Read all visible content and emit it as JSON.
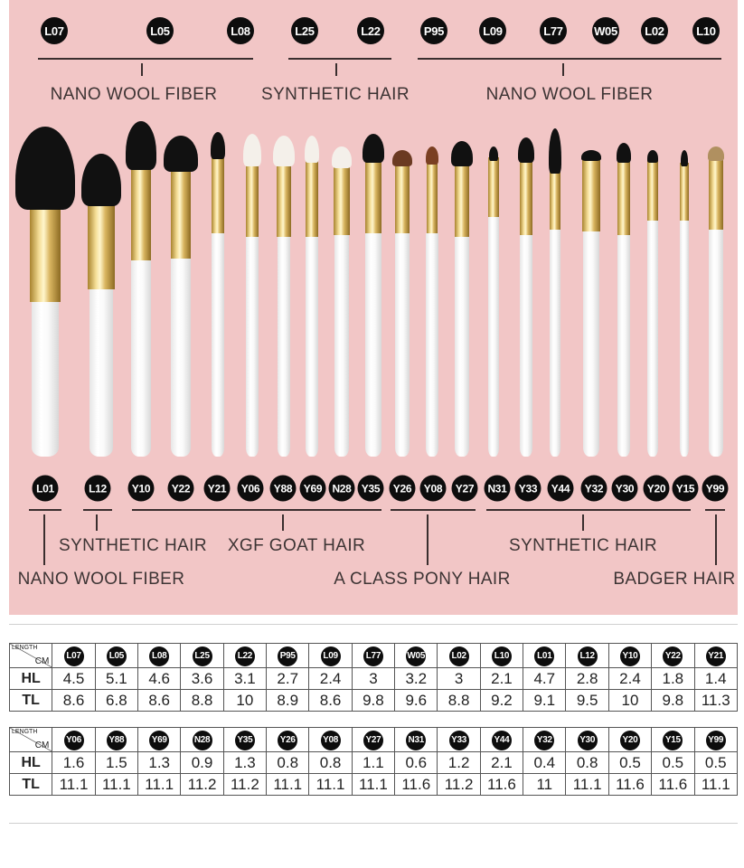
{
  "top_codes": [
    "L07",
    "L05",
    "L08",
    "L25",
    "L22",
    "P95",
    "L09",
    "L77",
    "W05",
    "L02",
    "L10"
  ],
  "top_groups": [
    "NANO WOOL  FIBER",
    "SYNTHETIC HAIR",
    "NANO WOOL  FIBER"
  ],
  "bottom_codes": [
    "L01",
    "L12",
    "Y10",
    "Y22",
    "Y21",
    "Y06",
    "Y88",
    "Y69",
    "N28",
    "Y35",
    "Y26",
    "Y08",
    "Y27",
    "N31",
    "Y33",
    "Y44",
    "Y32",
    "Y30",
    "Y20",
    "Y15",
    "Y99"
  ],
  "bottom_groups": [
    "SYNTHETIC HAIR",
    "XGF GOAT HAIR",
    "SYNTHETIC HAIR",
    "NANO WOOL  FIBER",
    "A CLASS PONY HAIR",
    "BADGER HAIR"
  ],
  "colors": {
    "background": "#f2c6c6",
    "badge": "#0d0d0d",
    "bristle_dark": "#111111",
    "ferrule": "#d9b560",
    "handle": "#ffffff"
  },
  "table": {
    "corner_top": "LENGTH",
    "corner_unit": "CM",
    "row_labels": [
      "HL",
      "TL"
    ],
    "row1": {
      "codes": [
        "L07",
        "L05",
        "L08",
        "L25",
        "L22",
        "P95",
        "L09",
        "L77",
        "W05",
        "L02",
        "L10",
        "L01",
        "L12",
        "Y10",
        "Y22",
        "Y21"
      ],
      "HL": [
        "4.5",
        "5.1",
        "4.6",
        "3.6",
        "3.1",
        "2.7",
        "2.4",
        "3",
        "3.2",
        "3",
        "2.1",
        "4.7",
        "2.8",
        "2.4",
        "1.8",
        "1.4"
      ],
      "TL": [
        "8.6",
        "6.8",
        "8.6",
        "8.8",
        "10",
        "8.9",
        "8.6",
        "9.8",
        "9.6",
        "8.8",
        "9.2",
        "9.1",
        "9.5",
        "10",
        "9.8",
        "11.3"
      ]
    },
    "row2": {
      "codes": [
        "Y06",
        "Y88",
        "Y69",
        "N28",
        "Y35",
        "Y26",
        "Y08",
        "Y27",
        "N31",
        "Y33",
        "Y44",
        "Y32",
        "Y30",
        "Y20",
        "Y15",
        "Y99"
      ],
      "HL": [
        "1.6",
        "1.5",
        "1.3",
        "0.9",
        "1.3",
        "0.8",
        "0.8",
        "1.1",
        "0.6",
        "1.2",
        "2.1",
        "0.4",
        "0.8",
        "0.5",
        "0.5",
        "0.5"
      ],
      "TL": [
        "11.1",
        "11.1",
        "11.1",
        "11.2",
        "11.2",
        "11.1",
        "11.1",
        "11.1",
        "11.6",
        "11.2",
        "11.6",
        "11",
        "11.1",
        "11.6",
        "11.6",
        "11.1"
      ]
    }
  }
}
